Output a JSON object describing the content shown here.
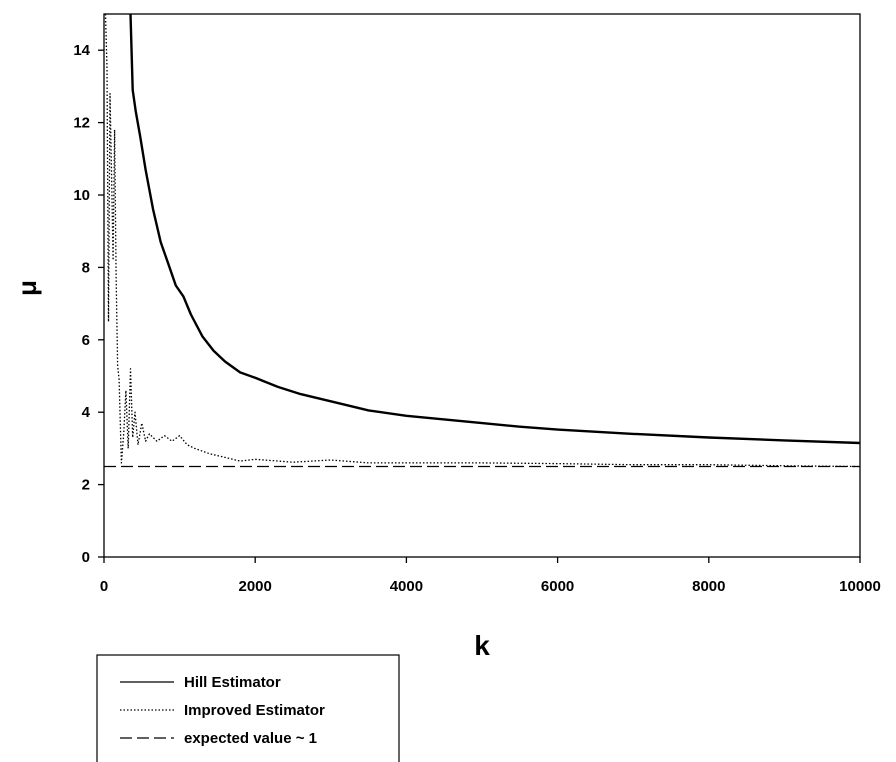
{
  "chart_data": {
    "type": "line",
    "title": "",
    "xlabel": "k",
    "ylabel": "μ",
    "xlim": [
      0,
      10000
    ],
    "ylim": [
      0,
      15
    ],
    "xticks": [
      0,
      2000,
      4000,
      6000,
      8000,
      10000
    ],
    "yticks": [
      0,
      2,
      4,
      6,
      8,
      10,
      12,
      14
    ],
    "grid": false,
    "legend_position": "bottom-left",
    "series": [
      {
        "name": "Hill Estimator",
        "style": "solid",
        "x": [
          350,
          380,
          420,
          480,
          550,
          650,
          750,
          850,
          950,
          1050,
          1150,
          1300,
          1450,
          1600,
          1800,
          2000,
          2300,
          2600,
          3000,
          3500,
          4000,
          4500,
          5000,
          5500,
          6000,
          7000,
          8000,
          9000,
          10000
        ],
        "y": [
          15,
          12.9,
          12.3,
          11.6,
          10.7,
          9.6,
          8.7,
          8.1,
          7.5,
          7.2,
          6.7,
          6.1,
          5.7,
          5.4,
          5.1,
          4.95,
          4.7,
          4.5,
          4.3,
          4.05,
          3.9,
          3.8,
          3.7,
          3.6,
          3.52,
          3.4,
          3.3,
          3.22,
          3.15
        ]
      },
      {
        "name": "Improved Estimator",
        "style": "dotted",
        "x": [
          20,
          40,
          60,
          80,
          100,
          120,
          140,
          160,
          180,
          200,
          230,
          260,
          290,
          320,
          350,
          380,
          410,
          450,
          500,
          550,
          600,
          700,
          800,
          900,
          1000,
          1100,
          1200,
          1400,
          1600,
          1800,
          2000,
          2500,
          3000,
          3500,
          4000,
          5000,
          6000,
          7000,
          8000,
          9000,
          10000
        ],
        "y": [
          15,
          13.5,
          6.5,
          12.8,
          10.5,
          8.2,
          11.8,
          7.8,
          5.3,
          4.9,
          2.6,
          3.4,
          4.6,
          3.0,
          5.2,
          3.3,
          4.0,
          3.1,
          3.7,
          3.2,
          3.4,
          3.2,
          3.35,
          3.2,
          3.35,
          3.1,
          3.0,
          2.85,
          2.75,
          2.65,
          2.7,
          2.62,
          2.68,
          2.6,
          2.6,
          2.6,
          2.58,
          2.55,
          2.55,
          2.52,
          2.5
        ]
      },
      {
        "name": "expected value ~ 1",
        "style": "dashed",
        "x": [
          0,
          10000
        ],
        "y": [
          2.5,
          2.5
        ]
      }
    ]
  }
}
